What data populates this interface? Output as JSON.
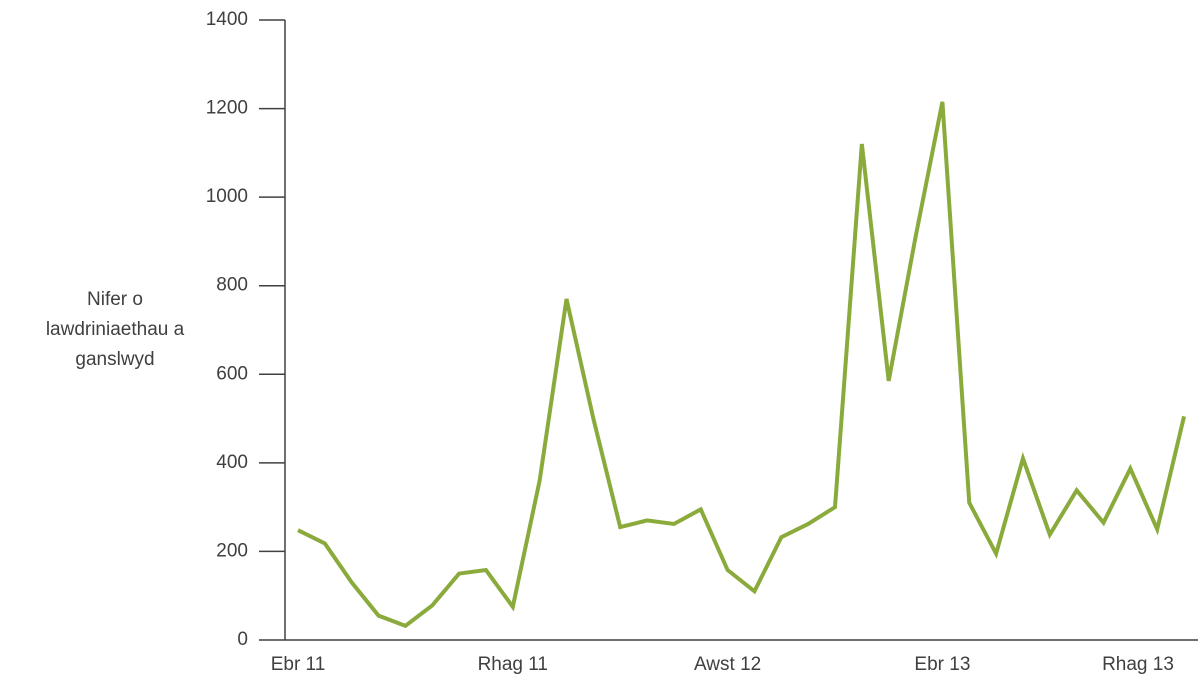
{
  "chart_data": {
    "type": "line",
    "y_label": "Nifer o lawdriniaethau a ganslwyd",
    "categories": [
      "Ebr 11",
      null,
      null,
      null,
      null,
      null,
      null,
      null,
      "Rhag 11",
      null,
      null,
      null,
      null,
      null,
      null,
      null,
      "Awst 12",
      null,
      null,
      null,
      null,
      null,
      null,
      null,
      "Ebr 13",
      null,
      null,
      null,
      null,
      null,
      null,
      null,
      "Rhag 13",
      null
    ],
    "series": [
      {
        "name": "Nifer o lawdriniaethau a ganslwyd",
        "color": "#8aab3c",
        "values": [
          248,
          218,
          130,
          55,
          32,
          78,
          150,
          158,
          75,
          360,
          770,
          500,
          255,
          270,
          262,
          295,
          158,
          110,
          232,
          262,
          300,
          1120,
          585,
          910,
          1215,
          310,
          195,
          410,
          238,
          338,
          265,
          387,
          250,
          505
        ]
      }
    ],
    "ylim": [
      0,
      1400
    ],
    "yticks": [
      0,
      200,
      400,
      600,
      800,
      1000,
      1200,
      1400
    ]
  }
}
